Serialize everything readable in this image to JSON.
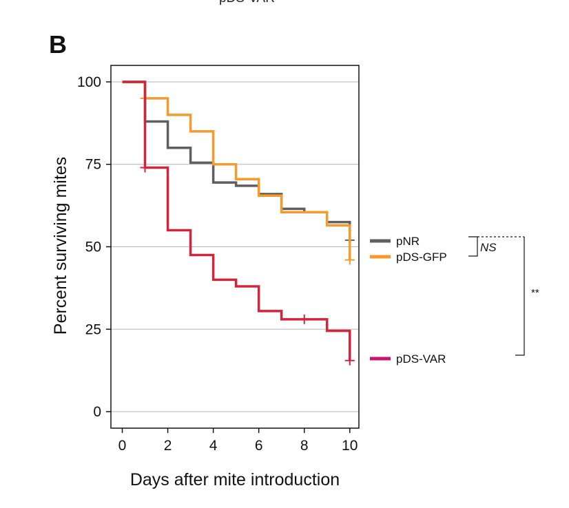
{
  "header_fragment": "pDS-VAR",
  "panel_label": "B",
  "colors": {
    "pNR": "#5f5f5f",
    "pDS-GFP": "#f59a2b",
    "pDS-VAR": "#d2243a",
    "pDS-VAR-legend": "#c9146b",
    "grid": "#b5b5b5"
  },
  "chart_data": {
    "type": "line",
    "style": "step",
    "xlabel": "Days after mite introduction",
    "ylabel": "Percent surviving mites",
    "xlim": [
      -0.5,
      10.4
    ],
    "ylim": [
      -5,
      105
    ],
    "xticks": [
      0,
      2,
      4,
      6,
      8,
      10
    ],
    "yticks": [
      0,
      25,
      50,
      75,
      100
    ],
    "grid": "horizontal",
    "legend_position": "right",
    "series": [
      {
        "name": "pNR",
        "color": "#5f5f5f",
        "steps": [
          [
            0,
            100
          ],
          [
            1,
            88
          ],
          [
            2,
            80
          ],
          [
            3,
            75.5
          ],
          [
            4,
            69.5
          ],
          [
            5,
            68.5
          ],
          [
            6,
            66
          ],
          [
            7,
            61.5
          ],
          [
            8,
            60.5
          ],
          [
            9,
            57.5
          ],
          [
            10,
            51.5
          ]
        ],
        "censored": [
          [
            10,
            52
          ]
        ]
      },
      {
        "name": "pDS-GFP",
        "color": "#f59a2b",
        "steps": [
          [
            0,
            100
          ],
          [
            1,
            95
          ],
          [
            2,
            90
          ],
          [
            3,
            85
          ],
          [
            4,
            75
          ],
          [
            5,
            70.5
          ],
          [
            6,
            65.5
          ],
          [
            7,
            60.5
          ],
          [
            8,
            60.5
          ],
          [
            9,
            56.5
          ],
          [
            10,
            46
          ]
        ],
        "censored": [
          [
            1,
            95
          ],
          [
            10,
            46
          ]
        ]
      },
      {
        "name": "pDS-VAR",
        "color": "#d2243a",
        "steps": [
          [
            0,
            100
          ],
          [
            1,
            74
          ],
          [
            2,
            55
          ],
          [
            3,
            47.5
          ],
          [
            4,
            40
          ],
          [
            5,
            38
          ],
          [
            6,
            30.5
          ],
          [
            7,
            28
          ],
          [
            8,
            28
          ],
          [
            9,
            24.5
          ],
          [
            10,
            15.5
          ]
        ],
        "censored": [
          [
            1,
            74
          ],
          [
            8,
            28
          ],
          [
            10,
            15.5
          ]
        ]
      }
    ],
    "annotations": {
      "ns": "NS",
      "stars": "**"
    }
  }
}
